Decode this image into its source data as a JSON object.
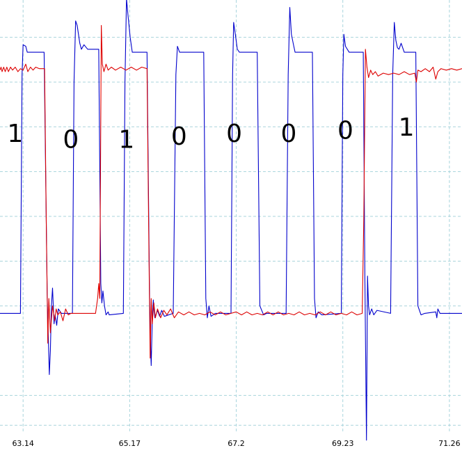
{
  "chart_data": {
    "type": "line",
    "title": "",
    "xlabel": "",
    "ylabel": "",
    "x_ticks": [
      "63.14",
      "65.17",
      "67.2",
      "69.23",
      "71.26"
    ],
    "x_tick_values": [
      63.14,
      65.17,
      67.2,
      69.23,
      71.26
    ],
    "xlim": [
      62.7,
      71.5
    ],
    "ylim": [
      -1.45,
      1.45
    ],
    "grid": true,
    "grid_style": "dashed",
    "colors": {
      "blue": "#0000cc",
      "red": "#dd0000",
      "grid": "#a8d4dc",
      "background": "#ffffff"
    },
    "bit_labels": [
      {
        "text": "1",
        "x": 62.99,
        "y": 0.5
      },
      {
        "text": "0",
        "x": 64.05,
        "y": 0.46
      },
      {
        "text": "1",
        "x": 65.11,
        "y": 0.46
      },
      {
        "text": "0",
        "x": 66.11,
        "y": 0.48
      },
      {
        "text": "0",
        "x": 67.16,
        "y": 0.5
      },
      {
        "text": "0",
        "x": 68.2,
        "y": 0.5
      },
      {
        "text": "0",
        "x": 69.28,
        "y": 0.52
      },
      {
        "text": "1",
        "x": 70.44,
        "y": 0.54
      }
    ],
    "series": [
      {
        "color": "#0000cc",
        "points": [
          [
            62.7,
            -0.65
          ],
          [
            63.09,
            -0.65
          ],
          [
            63.12,
            0.95
          ],
          [
            63.14,
            1.15
          ],
          [
            63.19,
            1.14
          ],
          [
            63.22,
            1.1
          ],
          [
            63.54,
            1.1
          ],
          [
            63.6,
            -0.55
          ],
          [
            63.64,
            -1.06
          ],
          [
            63.66,
            -0.9
          ],
          [
            63.68,
            -0.6
          ],
          [
            63.7,
            -0.48
          ],
          [
            63.73,
            -0.72
          ],
          [
            63.75,
            -0.66
          ],
          [
            63.78,
            -0.73
          ],
          [
            63.81,
            -0.62
          ],
          [
            63.87,
            -0.65
          ],
          [
            64.08,
            -0.65
          ],
          [
            64.11,
            0.9
          ],
          [
            64.14,
            1.31
          ],
          [
            64.17,
            1.28
          ],
          [
            64.22,
            1.16
          ],
          [
            64.25,
            1.12
          ],
          [
            64.3,
            1.15
          ],
          [
            64.37,
            1.12
          ],
          [
            64.58,
            1.12
          ],
          [
            64.62,
            -0.45
          ],
          [
            64.64,
            -0.58
          ],
          [
            64.66,
            -0.5
          ],
          [
            64.69,
            -0.6
          ],
          [
            64.72,
            -0.66
          ],
          [
            64.76,
            -0.64
          ],
          [
            64.78,
            -0.66
          ],
          [
            65.05,
            -0.65
          ],
          [
            65.08,
            0.9
          ],
          [
            65.11,
            1.46
          ],
          [
            65.14,
            1.34
          ],
          [
            65.18,
            1.2
          ],
          [
            65.22,
            1.1
          ],
          [
            65.5,
            1.1
          ],
          [
            65.55,
            -0.55
          ],
          [
            65.57,
            -0.9
          ],
          [
            65.58,
            -1.0
          ],
          [
            65.6,
            -0.7
          ],
          [
            65.62,
            -0.56
          ],
          [
            65.65,
            -0.68
          ],
          [
            65.7,
            -0.63
          ],
          [
            65.74,
            -0.67
          ],
          [
            65.78,
            -0.63
          ],
          [
            65.83,
            -0.67
          ],
          [
            66.0,
            -0.65
          ],
          [
            66.05,
            0.95
          ],
          [
            66.08,
            1.14
          ],
          [
            66.12,
            1.1
          ],
          [
            66.58,
            1.1
          ],
          [
            66.62,
            -0.55
          ],
          [
            66.65,
            -0.68
          ],
          [
            66.68,
            -0.6
          ],
          [
            66.72,
            -0.67
          ],
          [
            66.8,
            -0.65
          ],
          [
            67.1,
            -0.65
          ],
          [
            67.13,
            0.95
          ],
          [
            67.15,
            1.3
          ],
          [
            67.19,
            1.2
          ],
          [
            67.22,
            1.12
          ],
          [
            67.26,
            1.1
          ],
          [
            67.6,
            1.1
          ],
          [
            67.65,
            -0.6
          ],
          [
            67.72,
            -0.66
          ],
          [
            67.78,
            -0.65
          ],
          [
            68.15,
            -0.65
          ],
          [
            68.19,
            0.95
          ],
          [
            68.22,
            1.4
          ],
          [
            68.25,
            1.22
          ],
          [
            68.29,
            1.15
          ],
          [
            68.32,
            1.1
          ],
          [
            68.65,
            1.1
          ],
          [
            68.69,
            -0.55
          ],
          [
            68.72,
            -0.68
          ],
          [
            68.76,
            -0.64
          ],
          [
            68.83,
            -0.66
          ],
          [
            69.2,
            -0.65
          ],
          [
            69.23,
            0.95
          ],
          [
            69.25,
            1.22
          ],
          [
            69.28,
            1.14
          ],
          [
            69.35,
            1.1
          ],
          [
            69.62,
            1.1
          ],
          [
            69.65,
            -0.4
          ],
          [
            69.68,
            -1.5
          ],
          [
            69.7,
            -0.4
          ],
          [
            69.72,
            -0.6
          ],
          [
            69.74,
            -0.66
          ],
          [
            69.78,
            -0.62
          ],
          [
            69.82,
            -0.66
          ],
          [
            69.88,
            -0.63
          ],
          [
            70.14,
            -0.65
          ],
          [
            70.18,
            0.95
          ],
          [
            70.21,
            1.3
          ],
          [
            70.24,
            1.18
          ],
          [
            70.27,
            1.13
          ],
          [
            70.3,
            1.12
          ],
          [
            70.34,
            1.16
          ],
          [
            70.4,
            1.1
          ],
          [
            70.62,
            1.1
          ],
          [
            70.66,
            -0.6
          ],
          [
            70.72,
            -0.66
          ],
          [
            70.79,
            -0.65
          ],
          [
            71.0,
            -0.64
          ],
          [
            71.02,
            -0.68
          ],
          [
            71.04,
            -0.62
          ],
          [
            71.08,
            -0.65
          ],
          [
            71.5,
            -0.65
          ]
        ]
      },
      {
        "color": "#dd0000",
        "points": [
          [
            62.7,
            0.98
          ],
          [
            62.72,
            1.0
          ],
          [
            62.74,
            0.97
          ],
          [
            62.77,
            1.0
          ],
          [
            62.8,
            0.97
          ],
          [
            62.83,
            1.0
          ],
          [
            62.86,
            0.97
          ],
          [
            62.9,
            1.0
          ],
          [
            62.94,
            0.98
          ],
          [
            62.99,
            1.0
          ],
          [
            63.04,
            0.97
          ],
          [
            63.09,
            0.99
          ],
          [
            63.14,
            0.98
          ],
          [
            63.19,
            1.02
          ],
          [
            63.23,
            0.97
          ],
          [
            63.28,
            1.0
          ],
          [
            63.33,
            0.98
          ],
          [
            63.38,
            1.0
          ],
          [
            63.45,
            0.99
          ],
          [
            63.55,
            0.99
          ],
          [
            63.58,
            0.0
          ],
          [
            63.61,
            -0.85
          ],
          [
            63.63,
            -0.55
          ],
          [
            63.66,
            -0.78
          ],
          [
            63.7,
            -0.6
          ],
          [
            63.74,
            -0.7
          ],
          [
            63.77,
            -0.62
          ],
          [
            63.8,
            -0.66
          ],
          [
            63.85,
            -0.64
          ],
          [
            63.9,
            -0.7
          ],
          [
            63.95,
            -0.62
          ],
          [
            64.0,
            -0.66
          ],
          [
            64.05,
            -0.65
          ],
          [
            64.52,
            -0.65
          ],
          [
            64.56,
            -0.55
          ],
          [
            64.58,
            -0.45
          ],
          [
            64.6,
            -0.55
          ],
          [
            64.63,
            1.28
          ],
          [
            64.65,
            1.02
          ],
          [
            64.68,
            0.97
          ],
          [
            64.72,
            1.02
          ],
          [
            64.76,
            0.98
          ],
          [
            64.82,
            1.0
          ],
          [
            64.9,
            0.98
          ],
          [
            65.0,
            1.0
          ],
          [
            65.1,
            0.98
          ],
          [
            65.2,
            1.0
          ],
          [
            65.3,
            0.98
          ],
          [
            65.4,
            1.0
          ],
          [
            65.5,
            0.99
          ],
          [
            65.53,
            0.0
          ],
          [
            65.56,
            -0.95
          ],
          [
            65.58,
            -0.55
          ],
          [
            65.6,
            -0.72
          ],
          [
            65.63,
            -0.58
          ],
          [
            65.66,
            -0.68
          ],
          [
            65.7,
            -0.62
          ],
          [
            65.76,
            -0.68
          ],
          [
            65.82,
            -0.63
          ],
          [
            65.88,
            -0.66
          ],
          [
            65.95,
            -0.62
          ],
          [
            66.02,
            -0.68
          ],
          [
            66.1,
            -0.64
          ],
          [
            66.2,
            -0.66
          ],
          [
            66.3,
            -0.64
          ],
          [
            66.4,
            -0.66
          ],
          [
            66.5,
            -0.65
          ],
          [
            66.6,
            -0.66
          ],
          [
            66.7,
            -0.64
          ],
          [
            66.8,
            -0.66
          ],
          [
            66.9,
            -0.64
          ],
          [
            67.0,
            -0.66
          ],
          [
            67.1,
            -0.65
          ],
          [
            67.2,
            -0.64
          ],
          [
            67.3,
            -0.66
          ],
          [
            67.4,
            -0.64
          ],
          [
            67.5,
            -0.66
          ],
          [
            67.6,
            -0.65
          ],
          [
            67.7,
            -0.66
          ],
          [
            67.8,
            -0.64
          ],
          [
            67.9,
            -0.66
          ],
          [
            68.0,
            -0.64
          ],
          [
            68.1,
            -0.66
          ],
          [
            68.2,
            -0.65
          ],
          [
            68.3,
            -0.66
          ],
          [
            68.4,
            -0.64
          ],
          [
            68.5,
            -0.66
          ],
          [
            68.6,
            -0.65
          ],
          [
            68.7,
            -0.66
          ],
          [
            68.8,
            -0.64
          ],
          [
            68.9,
            -0.66
          ],
          [
            69.0,
            -0.64
          ],
          [
            69.1,
            -0.66
          ],
          [
            69.2,
            -0.65
          ],
          [
            69.3,
            -0.66
          ],
          [
            69.4,
            -0.64
          ],
          [
            69.5,
            -0.66
          ],
          [
            69.6,
            -0.65
          ],
          [
            69.63,
            0.0
          ],
          [
            69.66,
            1.12
          ],
          [
            69.69,
            1.0
          ],
          [
            69.72,
            0.93
          ],
          [
            69.76,
            0.98
          ],
          [
            69.8,
            0.95
          ],
          [
            69.85,
            0.97
          ],
          [
            69.9,
            0.94
          ],
          [
            70.0,
            0.96
          ],
          [
            70.1,
            0.95
          ],
          [
            70.2,
            0.96
          ],
          [
            70.3,
            0.95
          ],
          [
            70.4,
            0.97
          ],
          [
            70.5,
            0.95
          ],
          [
            70.6,
            0.96
          ],
          [
            70.63,
            0.9
          ],
          [
            70.66,
            0.98
          ],
          [
            70.72,
            0.97
          ],
          [
            70.8,
            0.99
          ],
          [
            70.88,
            0.97
          ],
          [
            70.95,
            1.0
          ],
          [
            71.0,
            0.92
          ],
          [
            71.04,
            0.97
          ],
          [
            71.1,
            0.99
          ],
          [
            71.2,
            0.98
          ],
          [
            71.3,
            0.99
          ],
          [
            71.4,
            0.98
          ],
          [
            71.5,
            0.99
          ]
        ]
      }
    ]
  }
}
